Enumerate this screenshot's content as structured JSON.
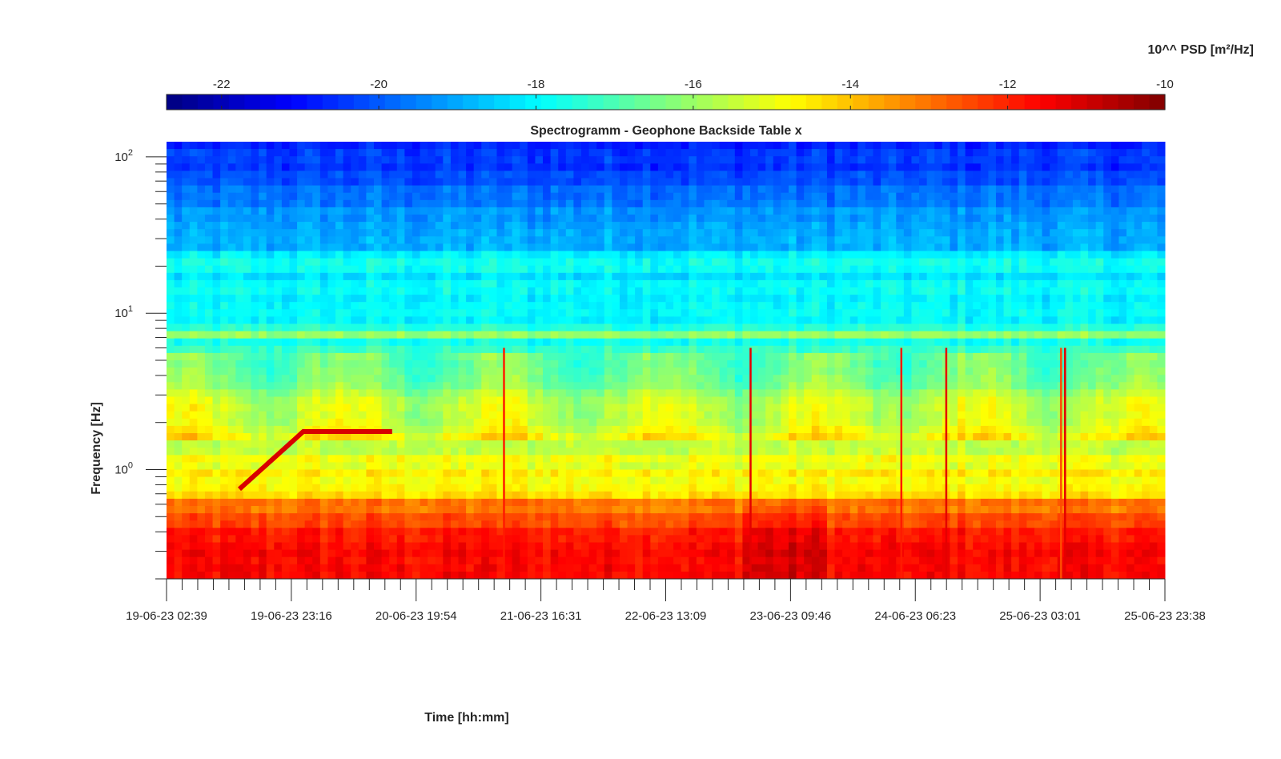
{
  "chart_data": {
    "type": "heatmap",
    "title": "Spectrogramm - Geophone Backside Table x",
    "xlabel": "Time [hh:mm]",
    "ylabel": "Frequency [Hz]",
    "y_scale": "log",
    "ylim": [
      0.2,
      125
    ],
    "y_ticks": [
      {
        "value": 100,
        "base": "10",
        "exp": "2"
      },
      {
        "value": 10,
        "base": "10",
        "exp": "1"
      },
      {
        "value": 1,
        "base": "10",
        "exp": "0"
      }
    ],
    "x_tick_labels": [
      "19-06-23 02:39",
      "19-06-23 23:16",
      "20-06-23 19:54",
      "21-06-23 16:31",
      "22-06-23 13:09",
      "23-06-23 09:46",
      "24-06-23 06:23",
      "25-06-23 03:01",
      "25-06-23 23:38"
    ],
    "colorbar": {
      "label": "10^^ PSD [m²/Hz]",
      "position": "top",
      "colormap": "jet",
      "range": [
        -22.7,
        -10
      ],
      "ticks": [
        "-22",
        "-20",
        "-18",
        "-16",
        "-14",
        "-12",
        "-10"
      ]
    },
    "features": {
      "persistent_line_hz": 7.3,
      "ramp_then_steady_hz": 1.75,
      "transients": "vertical broadband spikes near 21-06 evening, 23-06 morning, 24-06 mid-day, 25-06"
    }
  }
}
